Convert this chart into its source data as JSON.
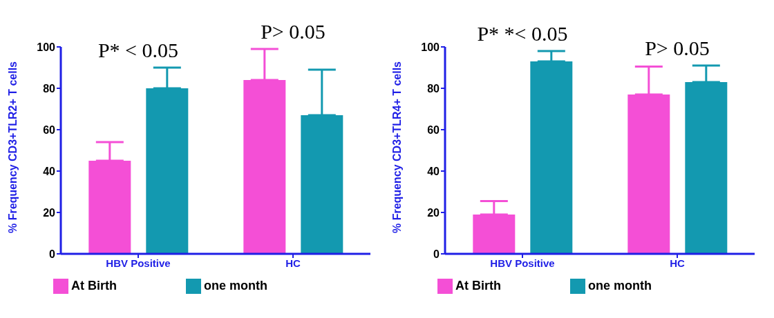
{
  "chart_data": [
    {
      "type": "bar",
      "ylabel": "% Frequency CD3+TLR2+ T cells",
      "categories": [
        "HBV Positive",
        "HC"
      ],
      "series": [
        {
          "name": "At Birth",
          "color": "#f44fd6",
          "values": [
            45,
            84
          ],
          "errors": [
            [
              45,
              54
            ],
            [
              84,
              99
            ]
          ]
        },
        {
          "name": "one month",
          "color": "#1399b0",
          "values": [
            80,
            67
          ],
          "errors": [
            [
              80,
              90
            ],
            [
              67,
              89
            ]
          ]
        }
      ],
      "ylim": [
        0,
        100
      ],
      "yticks": [
        0,
        20,
        40,
        60,
        80,
        100
      ],
      "grid": false,
      "legend": "bottom",
      "annotations": [
        "P* < 0.05",
        "P> 0.05"
      ]
    },
    {
      "type": "bar",
      "ylabel": "% Frequency CD3+TLR4+ T cells",
      "categories": [
        "HBV Positive",
        "HC"
      ],
      "series": [
        {
          "name": "At Birth",
          "color": "#f44fd6",
          "values": [
            19,
            77
          ],
          "errors": [
            [
              19,
              25.5
            ],
            [
              77,
              90.5
            ]
          ]
        },
        {
          "name": "one month",
          "color": "#1399b0",
          "values": [
            93,
            83
          ],
          "errors": [
            [
              93,
              98
            ],
            [
              83,
              91
            ]
          ]
        }
      ],
      "ylim": [
        0,
        100
      ],
      "yticks": [
        0,
        20,
        40,
        60,
        80,
        100
      ],
      "grid": false,
      "legend": "bottom",
      "annotations": [
        "P* *< 0.05",
        "P> 0.05"
      ]
    }
  ]
}
